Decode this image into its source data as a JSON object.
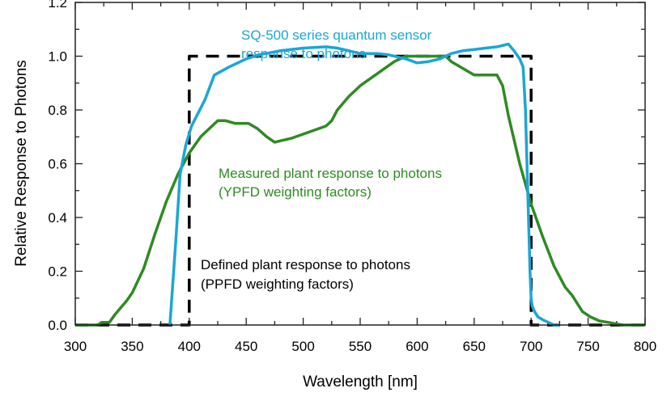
{
  "chart_data": {
    "type": "line",
    "title": "",
    "xlabel": "Wavelength [nm]",
    "ylabel": "Relative Response to Photons",
    "xlim": [
      300,
      800
    ],
    "ylim": [
      0,
      1.2
    ],
    "xticks": [
      300,
      350,
      400,
      450,
      500,
      550,
      600,
      650,
      700,
      750,
      800
    ],
    "xtick_labels": [
      "300",
      "350",
      "400",
      "450",
      "500",
      "550",
      "600",
      "650",
      "700",
      "750",
      "800"
    ],
    "yticks": [
      0,
      0.2,
      0.4,
      0.6,
      0.8,
      1.0,
      1.2
    ],
    "ytick_labels": [
      "0.0",
      "0.2",
      "0.4",
      "0.6",
      "0.8",
      "1.0",
      "1.2"
    ],
    "grid": false,
    "legend": "none",
    "series": [
      {
        "name": "SQ-500 series quantum sensor response to photons",
        "color": "#1aa6d6",
        "style": "solid",
        "x": [
          383,
          388,
          392,
          397,
          402,
          408,
          414,
          422,
          435,
          450,
          461,
          480,
          500,
          520,
          530,
          540,
          550,
          565,
          575,
          590,
          600,
          610,
          620,
          630,
          640,
          650,
          660,
          670,
          680,
          685,
          690,
          693,
          695,
          697,
          699,
          700,
          701,
          703,
          706,
          710,
          715,
          720,
          725
        ],
        "y": [
          0,
          0.3,
          0.56,
          0.67,
          0.74,
          0.79,
          0.84,
          0.93,
          0.96,
          0.99,
          1.005,
          1.02,
          1.03,
          1.035,
          1.03,
          1.02,
          1.01,
          1.01,
          1.005,
          0.99,
          0.975,
          0.98,
          0.99,
          1.01,
          1.02,
          1.025,
          1.03,
          1.035,
          1.045,
          1.02,
          0.99,
          0.96,
          0.8,
          0.5,
          0.2,
          0.1,
          0.07,
          0.05,
          0.03,
          0.02,
          0.01,
          0.0,
          0.0
        ]
      },
      {
        "name": "Measured plant response to photons (YPFD weighting factors)",
        "color": "#2e8b22",
        "style": "solid",
        "x": [
          300,
          320,
          323,
          330,
          335,
          345,
          350,
          360,
          370,
          380,
          390,
          400,
          410,
          420,
          425,
          432,
          440,
          452,
          460,
          468,
          475,
          480,
          490,
          500,
          510,
          520,
          525,
          530,
          540,
          550,
          560,
          570,
          580,
          590,
          600,
          620,
          625,
          630,
          640,
          650,
          670,
          675,
          680,
          690,
          700,
          710,
          720,
          730,
          736,
          745,
          752,
          760,
          770,
          780,
          790,
          800
        ],
        "y": [
          0,
          0,
          0.01,
          0.01,
          0.04,
          0.09,
          0.12,
          0.21,
          0.34,
          0.46,
          0.56,
          0.64,
          0.7,
          0.74,
          0.76,
          0.76,
          0.75,
          0.75,
          0.73,
          0.7,
          0.68,
          0.685,
          0.695,
          0.71,
          0.725,
          0.74,
          0.76,
          0.8,
          0.85,
          0.89,
          0.92,
          0.95,
          0.98,
          1.0,
          1.0,
          1.0,
          1.0,
          0.98,
          0.955,
          0.93,
          0.93,
          0.89,
          0.78,
          0.6,
          0.45,
          0.33,
          0.22,
          0.14,
          0.11,
          0.05,
          0.03,
          0.015,
          0.008,
          0.0,
          0.0,
          0.0
        ]
      },
      {
        "name": "Defined plant response to photons (PPFD weighting factors)",
        "color": "#000000",
        "style": "dashed",
        "x": [
          300,
          400,
          400,
          700,
          700,
          800
        ],
        "y": [
          0,
          0,
          1,
          1,
          0,
          0
        ]
      }
    ],
    "annotations": [
      {
        "lines": [
          "SQ-500 series quantum sensor",
          "response to photons"
        ],
        "color": "#1aa6d6"
      },
      {
        "lines": [
          "Measured plant response to photons",
          "(YPFD weighting factors)"
        ],
        "color": "#2e8b22"
      },
      {
        "lines": [
          "Defined plant response to photons",
          "(PPFD weighting factors)"
        ],
        "color": "#000000"
      }
    ]
  }
}
